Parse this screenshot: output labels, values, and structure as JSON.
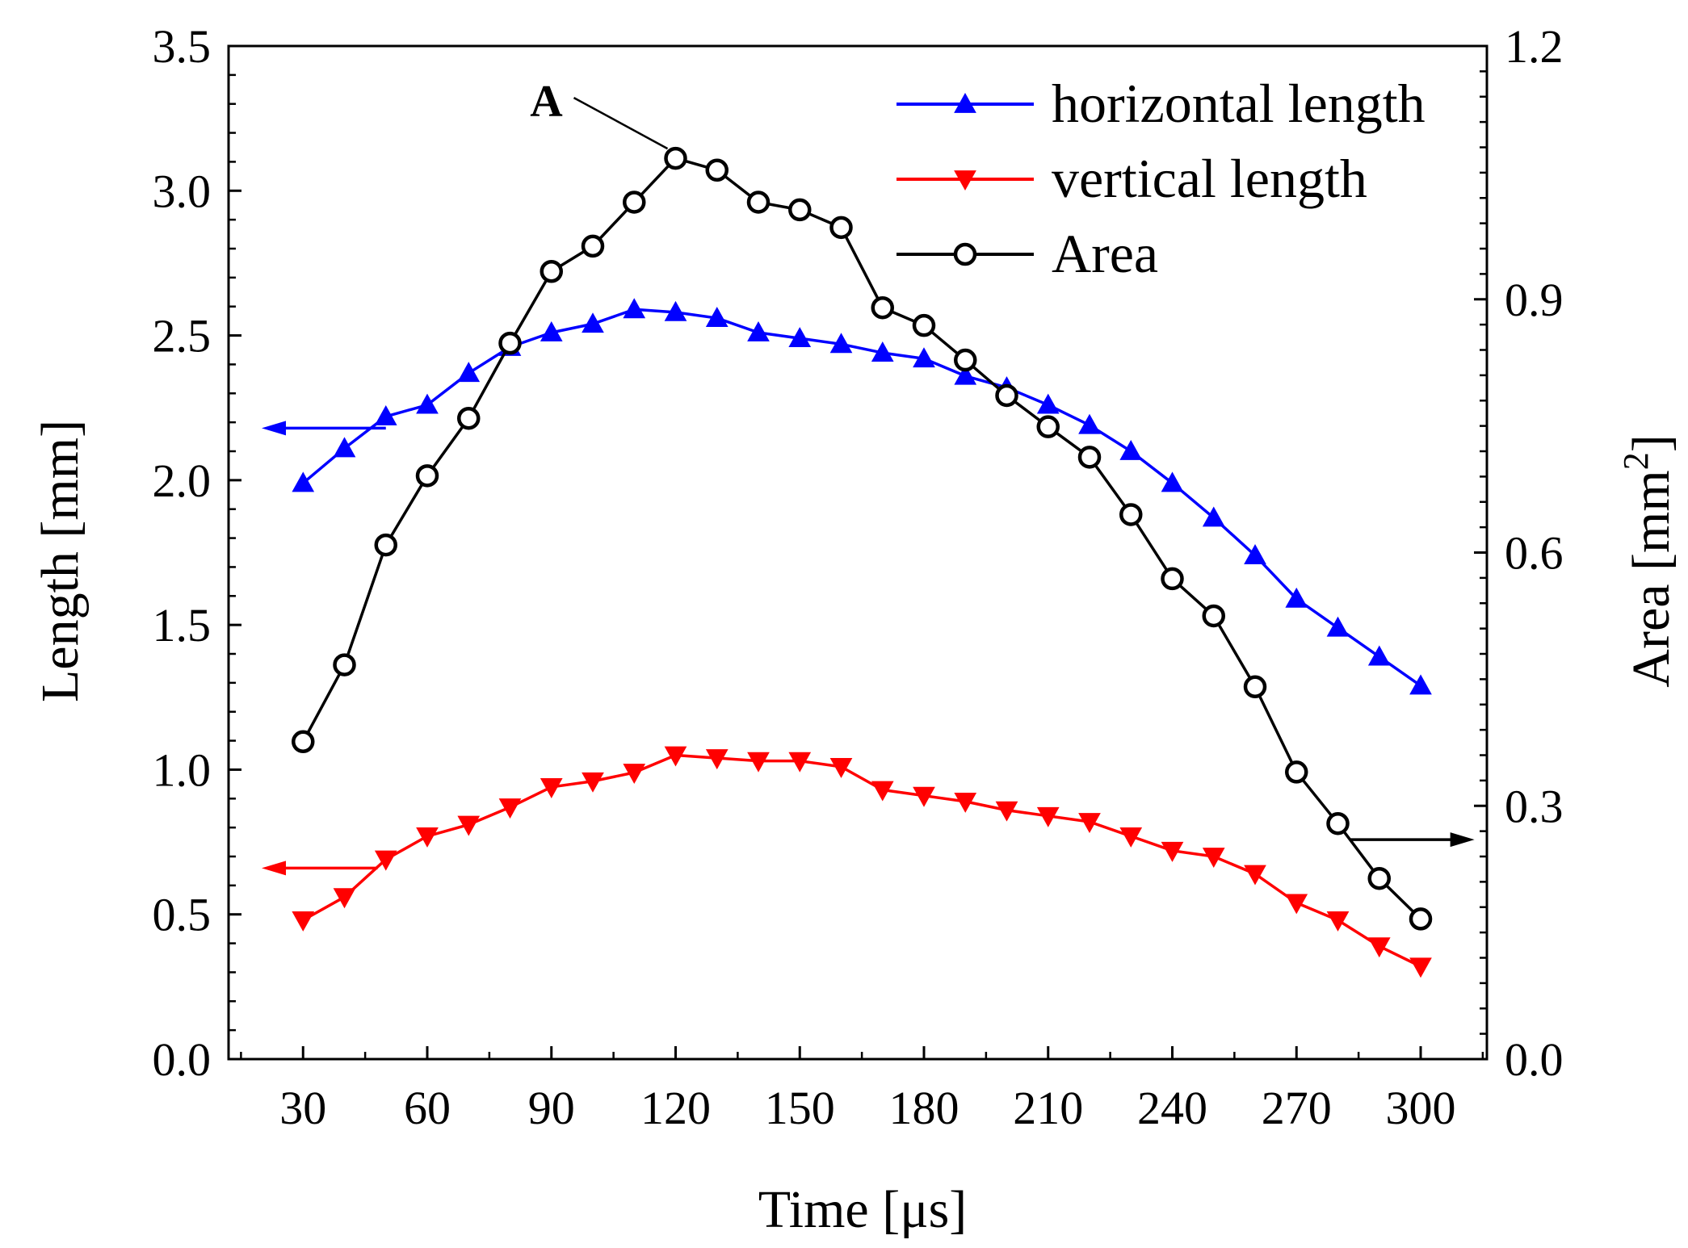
{
  "chart_data": {
    "type": "line",
    "title": "",
    "xlabel": "Time [μs]",
    "ylabel_left": "Length [mm]",
    "ylabel_right_base": "Area [mm",
    "ylabel_right_sup": "2",
    "ylabel_right_close": "]",
    "xlim": [
      12,
      316
    ],
    "ylim_left": [
      0.0,
      3.5
    ],
    "ylim_right": [
      0.0,
      1.2
    ],
    "x_ticks": [
      "30",
      "60",
      "90",
      "120",
      "150",
      "180",
      "210",
      "240",
      "270",
      "300"
    ],
    "y_left_ticks": [
      "0.0",
      "0.5",
      "1.0",
      "1.5",
      "2.0",
      "2.5",
      "3.0",
      "3.5"
    ],
    "y_right_ticks": [
      "0.0",
      "0.3",
      "0.6",
      "0.9",
      "1.2"
    ],
    "grid": false,
    "legend_position": "top-right",
    "x": [
      30,
      40,
      50,
      60,
      70,
      80,
      90,
      100,
      110,
      120,
      130,
      140,
      150,
      160,
      170,
      180,
      190,
      200,
      210,
      220,
      230,
      240,
      250,
      260,
      270,
      280,
      290,
      300
    ],
    "series": [
      {
        "name": "horizontal length",
        "axis": "left",
        "color": "#0000ff",
        "marker": "triangle-up",
        "values": [
          1.99,
          2.11,
          2.22,
          2.26,
          2.37,
          2.46,
          2.51,
          2.54,
          2.59,
          2.58,
          2.56,
          2.51,
          2.49,
          2.47,
          2.44,
          2.42,
          2.36,
          2.32,
          2.26,
          2.19,
          2.1,
          1.99,
          1.87,
          1.74,
          1.59,
          1.49,
          1.39,
          1.29
        ]
      },
      {
        "name": "vertical length",
        "axis": "left",
        "color": "#ff0000",
        "marker": "triangle-down",
        "values": [
          0.48,
          0.56,
          0.69,
          0.77,
          0.81,
          0.87,
          0.94,
          0.96,
          0.99,
          1.05,
          1.04,
          1.03,
          1.03,
          1.01,
          0.93,
          0.91,
          0.89,
          0.86,
          0.84,
          0.82,
          0.77,
          0.72,
          0.7,
          0.64,
          0.54,
          0.48,
          0.39,
          0.32
        ]
      },
      {
        "name": "Area",
        "axis": "right",
        "color": "#000000",
        "marker": "circle-open",
        "values": [
          0.376,
          0.467,
          0.609,
          0.691,
          0.759,
          0.848,
          0.933,
          0.963,
          1.015,
          1.067,
          1.053,
          1.015,
          1.006,
          0.985,
          0.89,
          0.869,
          0.828,
          0.786,
          0.749,
          0.713,
          0.645,
          0.569,
          0.525,
          0.441,
          0.34,
          0.279,
          0.214,
          0.166
        ]
      }
    ],
    "annotations": [
      {
        "text": "A",
        "target_series": "Area",
        "x": 120,
        "y": 1.067
      }
    ],
    "axis_arrows": [
      {
        "series": "horizontal length",
        "points_to": "left",
        "at_y": 2.18,
        "from_x": 50,
        "to_x": 20
      },
      {
        "series": "vertical length",
        "points_to": "left",
        "at_y": 0.66,
        "from_x": 48,
        "to_x": 20
      },
      {
        "series": "Area",
        "points_to": "right",
        "at_y": 0.26,
        "from_x": 283,
        "to_x": 313
      }
    ]
  }
}
